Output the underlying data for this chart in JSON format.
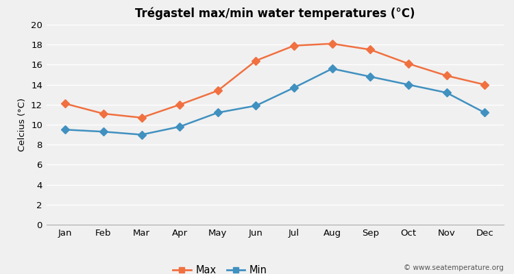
{
  "title": "Trégastel max/min water temperatures (°C)",
  "ylabel": "Celcius (°C)",
  "months": [
    "Jan",
    "Feb",
    "Mar",
    "Apr",
    "May",
    "Jun",
    "Jul",
    "Aug",
    "Sep",
    "Oct",
    "Nov",
    "Dec"
  ],
  "max_temps": [
    12.1,
    11.1,
    10.7,
    12.0,
    13.4,
    16.4,
    17.9,
    18.1,
    17.5,
    16.1,
    14.9,
    14.0
  ],
  "min_temps": [
    9.5,
    9.3,
    9.0,
    9.8,
    11.2,
    11.9,
    13.7,
    15.6,
    14.8,
    14.0,
    13.2,
    11.2
  ],
  "max_color": "#f07040",
  "min_color": "#4090c0",
  "bg_color": "#f0f0f0",
  "plot_bg_color": "#f0f0f0",
  "ylim": [
    0,
    20
  ],
  "yticks": [
    0,
    2,
    4,
    6,
    8,
    10,
    12,
    14,
    16,
    18,
    20
  ],
  "grid_color": "#ffffff",
  "watermark": "© www.seatemperature.org",
  "marker": "D",
  "markersize": 6,
  "linewidth": 1.8,
  "legend_label_max": "Max",
  "legend_label_min": "Min"
}
